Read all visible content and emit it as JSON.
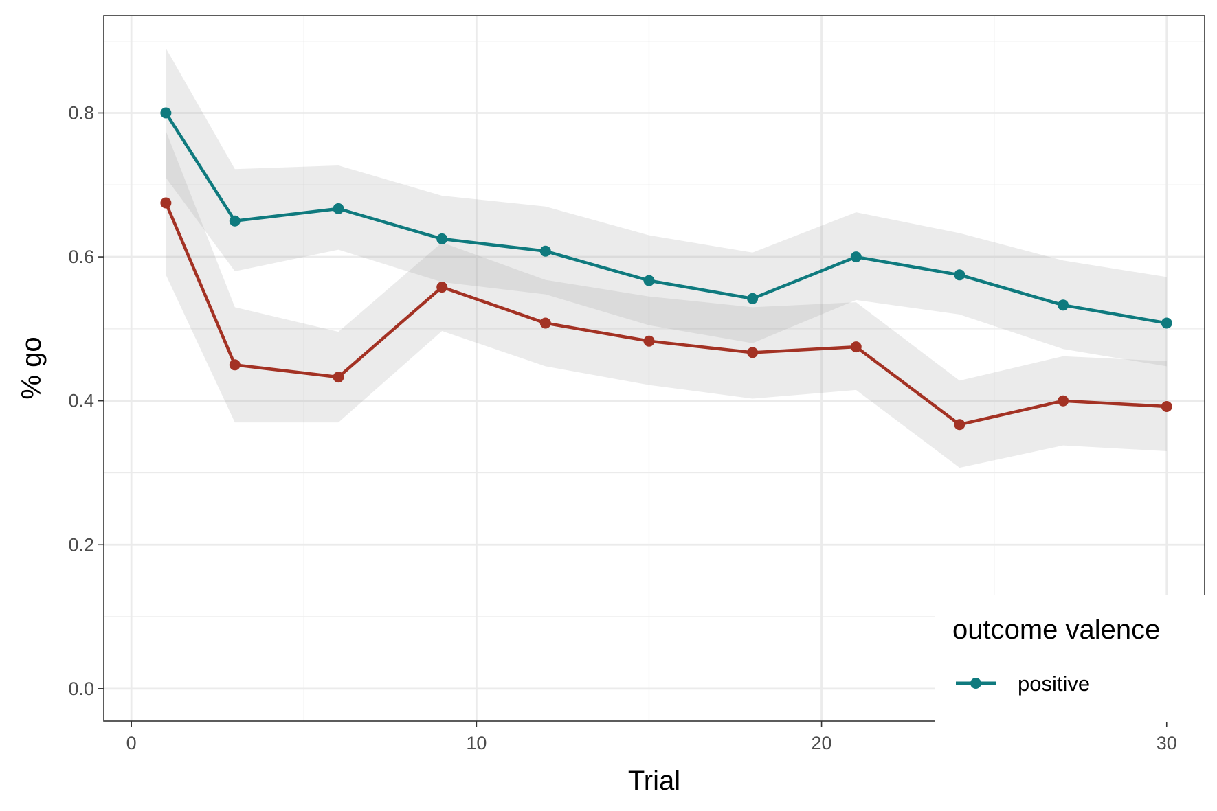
{
  "chart_data": {
    "type": "line",
    "xlabel": "Trial",
    "ylabel": "% go",
    "xlim": [
      -0.8,
      31.1
    ],
    "ylim": [
      -0.045,
      0.935
    ],
    "x_ticks": [
      0,
      10,
      20,
      30
    ],
    "x_tick_labels": [
      "0",
      "10",
      "20",
      "30"
    ],
    "y_ticks": [
      0.0,
      0.2,
      0.4,
      0.6,
      0.8
    ],
    "y_tick_labels": [
      "0.0",
      "0.2",
      "0.4",
      "0.6",
      "0.8"
    ],
    "grid": true,
    "legend": {
      "title": "outcome valence",
      "placement": "bottom-right"
    },
    "x": [
      1,
      3,
      6,
      9,
      12,
      15,
      18,
      21,
      24,
      27,
      30
    ],
    "series": [
      {
        "name": "positive",
        "color": "#0f7a7e",
        "values": [
          0.8,
          0.65,
          0.667,
          0.625,
          0.608,
          0.567,
          0.542,
          0.6,
          0.575,
          0.533,
          0.508
        ],
        "lower": [
          0.71,
          0.58,
          0.61,
          0.565,
          0.548,
          0.505,
          0.48,
          0.54,
          0.52,
          0.472,
          0.448
        ],
        "upper": [
          0.89,
          0.722,
          0.727,
          0.685,
          0.67,
          0.63,
          0.606,
          0.662,
          0.633,
          0.595,
          0.572
        ]
      },
      {
        "name": "",
        "color": "#a33224",
        "values": [
          0.675,
          0.45,
          0.433,
          0.558,
          0.508,
          0.483,
          0.467,
          0.475,
          0.367,
          0.4,
          0.392
        ],
        "lower": [
          0.575,
          0.37,
          0.37,
          0.497,
          0.448,
          0.422,
          0.403,
          0.415,
          0.307,
          0.338,
          0.33
        ],
        "upper": [
          0.775,
          0.53,
          0.496,
          0.62,
          0.568,
          0.545,
          0.53,
          0.537,
          0.428,
          0.462,
          0.455
        ]
      }
    ]
  }
}
